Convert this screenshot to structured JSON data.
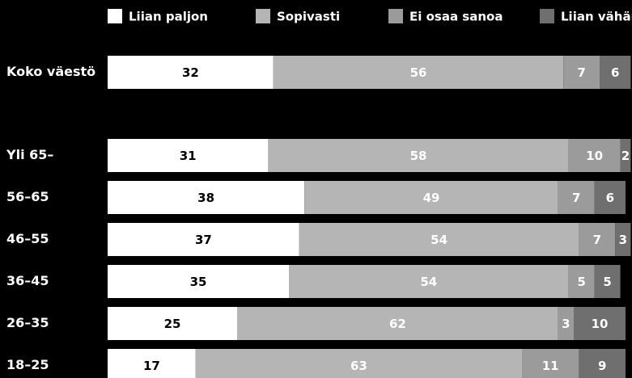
{
  "chart_data": {
    "type": "stacked-bar",
    "categories": [
      "Koko väestö",
      "Yli 65–",
      "56–65",
      "46–55",
      "36–45",
      "26–35",
      "18–25"
    ],
    "series": [
      {
        "name": "Liian paljon",
        "color": "#ffffff",
        "values": [
          32,
          31,
          38,
          37,
          35,
          25,
          17
        ]
      },
      {
        "name": "Sopivasti",
        "color": "#b5b5b5",
        "values": [
          56,
          58,
          49,
          54,
          54,
          62,
          63
        ]
      },
      {
        "name": "Ei osaa sanoa",
        "color": "#9b9b9b",
        "values": [
          7,
          10,
          7,
          7,
          5,
          3,
          11
        ]
      },
      {
        "name": "Liian vähän",
        "color": "#6f6f6f",
        "values": [
          6,
          2,
          6,
          3,
          5,
          10,
          9
        ]
      }
    ]
  }
}
